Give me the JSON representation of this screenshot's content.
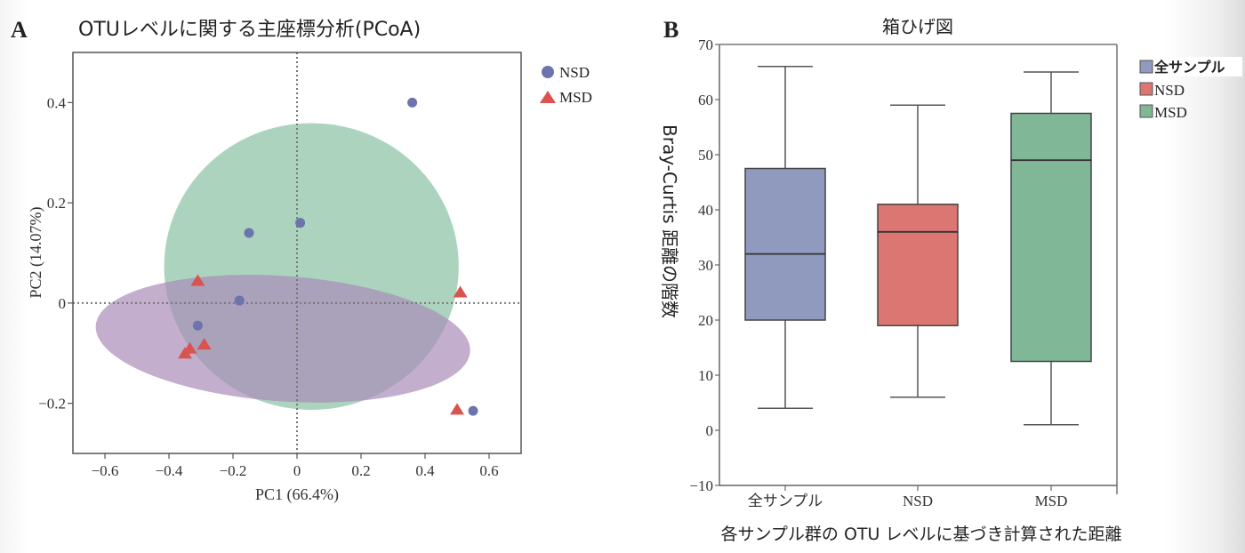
{
  "chart_data": [
    {
      "panel_label": "A",
      "type": "scatter",
      "title": "OTUレベルに関する主座標分析(PCoA)",
      "xlabel": "PC1 (66.4%)",
      "ylabel": "PC2 (14.07%)",
      "xlim": [
        -0.7,
        0.7
      ],
      "ylim": [
        -0.3,
        0.5
      ],
      "xticks": [
        -0.6,
        -0.4,
        -0.2,
        0,
        0.2,
        0.4,
        0.6
      ],
      "xtick_labels": [
        "−0.6",
        "−0.4",
        "−0.2",
        "0",
        "0.2",
        "0.4",
        "0.6"
      ],
      "yticks": [
        -0.2,
        0,
        0.2,
        0.4
      ],
      "ytick_labels": [
        "−0.2",
        "0",
        "0.2",
        "0.4"
      ],
      "grid": false,
      "reference_lines": {
        "x": 0,
        "y": 0,
        "style": "dotted"
      },
      "legend": {
        "position": "top-right-outside",
        "entries": [
          {
            "label": "NSD",
            "marker": "circle",
            "color": "#6b74ad"
          },
          {
            "label": "MSD",
            "marker": "triangle",
            "color": "#d9534f"
          }
        ]
      },
      "series": [
        {
          "name": "NSD",
          "marker": "circle",
          "color": "#6b74ad",
          "points": [
            [
              0.36,
              0.4
            ],
            [
              -0.15,
              0.14
            ],
            [
              0.01,
              0.16
            ],
            [
              -0.18,
              0.005
            ],
            [
              -0.31,
              -0.045
            ],
            [
              0.55,
              -0.215
            ]
          ]
        },
        {
          "name": "MSD",
          "marker": "triangle",
          "color": "#d9534f",
          "points": [
            [
              -0.31,
              0.045
            ],
            [
              0.51,
              0.022
            ],
            [
              -0.29,
              -0.082
            ],
            [
              -0.335,
              -0.09
            ],
            [
              -0.35,
              -0.1
            ],
            [
              0.5,
              -0.212
            ]
          ]
        }
      ],
      "ellipses": [
        {
          "name": "MSD-ellipse",
          "color": "#8fc4a8",
          "opacity": 0.75,
          "cx": 0.045,
          "cy": 0.073,
          "rx": 0.46,
          "ry": 0.286,
          "angle_deg": 0
        },
        {
          "name": "NSD-ellipse",
          "color": "#a98bb8",
          "opacity": 0.7,
          "cx": -0.044,
          "cy": -0.071,
          "rx": 0.586,
          "ry": 0.125,
          "angle_deg": 4
        }
      ]
    },
    {
      "panel_label": "B",
      "type": "box",
      "title": "箱ひげ図",
      "xlabel": "各サンプル群の OTU レベルに基づき計算された距離",
      "ylabel": "Bray-Curtis 距離の階数",
      "ylim": [
        -10,
        70
      ],
      "yticks": [
        -10,
        0,
        10,
        20,
        30,
        40,
        50,
        60,
        70
      ],
      "ytick_labels": [
        "−10",
        "0",
        "10",
        "20",
        "30",
        "40",
        "50",
        "60",
        "70"
      ],
      "categories": [
        "全サンプル",
        "NSD",
        "MSD"
      ],
      "grid": false,
      "legend": {
        "position": "top-right-outside",
        "entries": [
          {
            "label": "全サンプル",
            "color": "#8f9abe"
          },
          {
            "label": "NSD",
            "color": "#dc7672"
          },
          {
            "label": "MSD",
            "color": "#80b897"
          }
        ]
      },
      "boxes": [
        {
          "name": "全サンプル",
          "color": "#8f9abe",
          "whisker_low": 4,
          "q1": 20,
          "median": 32,
          "q3": 47.5,
          "whisker_high": 66
        },
        {
          "name": "NSD",
          "color": "#dc7672",
          "whisker_low": 6,
          "q1": 19,
          "median": 36,
          "q3": 41,
          "whisker_high": 59
        },
        {
          "name": "MSD",
          "color": "#80b897",
          "whisker_low": 1,
          "q1": 12.5,
          "median": 49,
          "q3": 57.5,
          "whisker_high": 65
        }
      ]
    }
  ]
}
